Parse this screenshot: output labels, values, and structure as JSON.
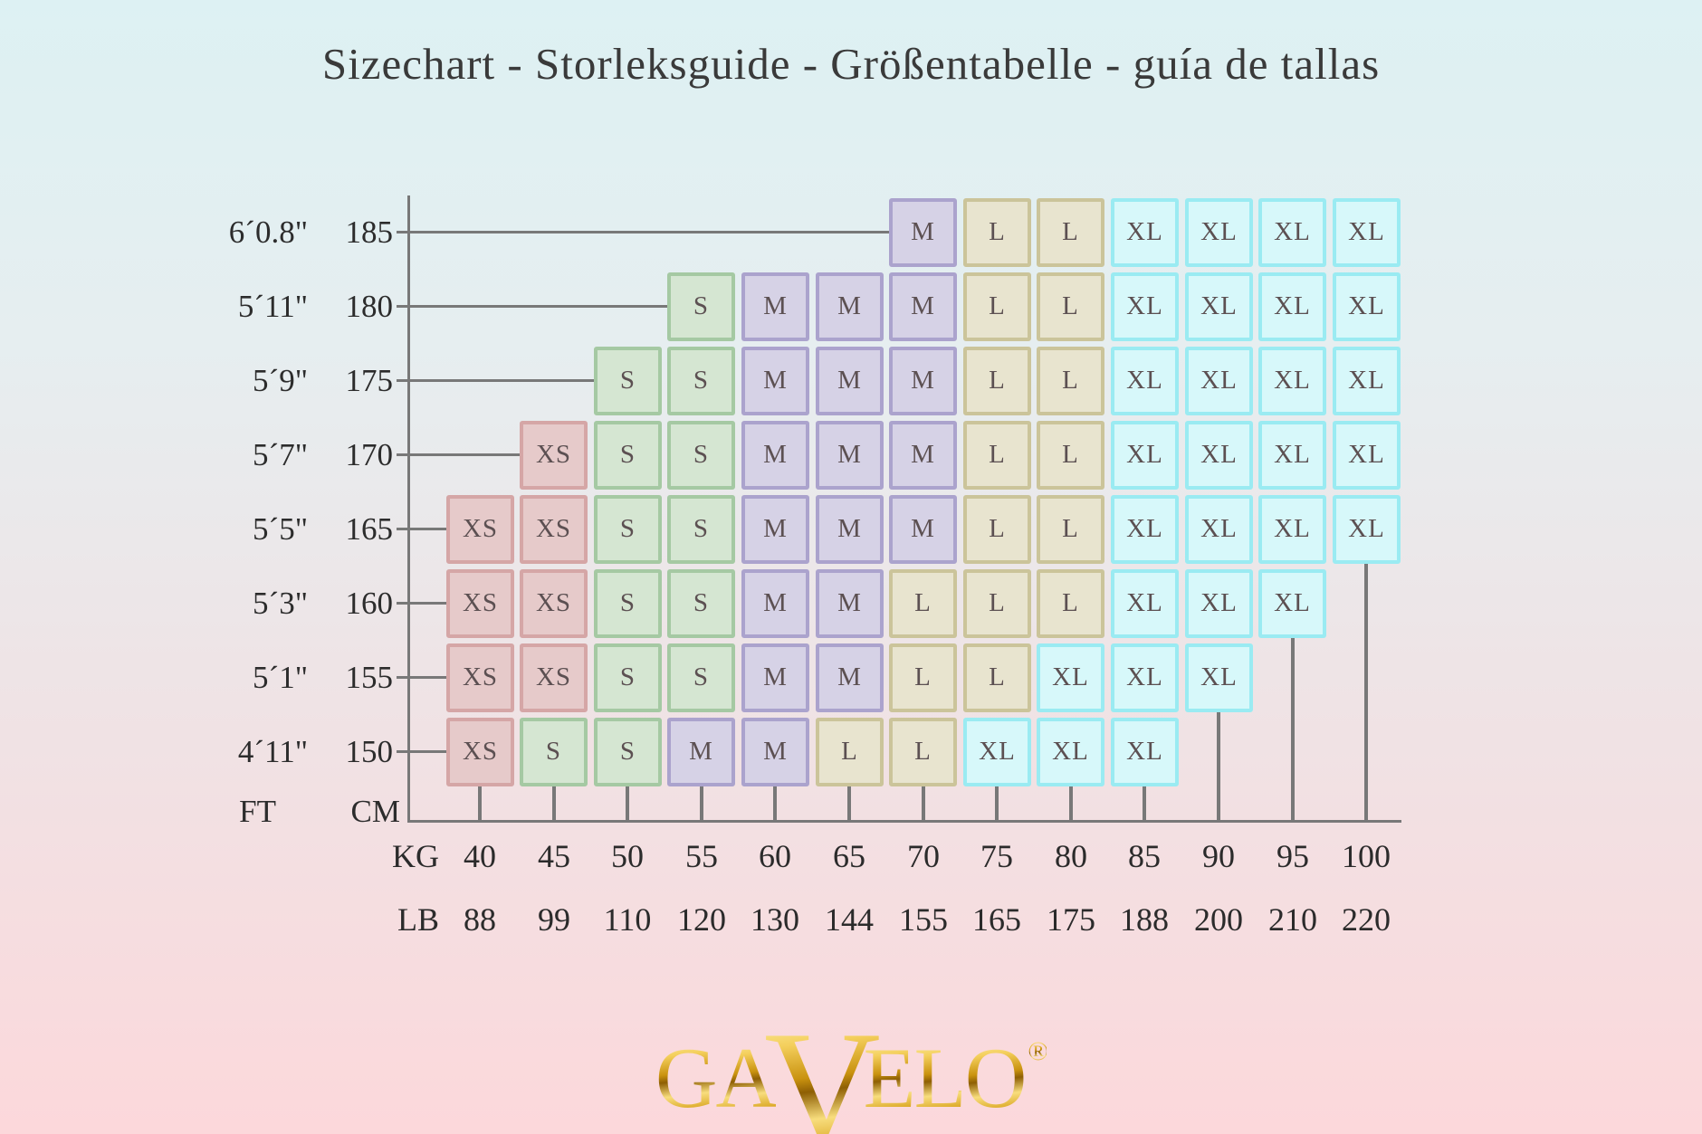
{
  "title": "Sizechart - Storleksguide - Größentabelle - guía de tallas",
  "chart_data": {
    "type": "heatmap",
    "title": "Sizechart - Storleksguide - Größentabelle - guía de tallas",
    "y_axis": {
      "unit_left": "FT",
      "unit_right": "CM"
    },
    "x_axis": {
      "row1_label": "KG",
      "row2_label": "LB",
      "kg": [
        "40",
        "45",
        "50",
        "55",
        "60",
        "65",
        "70",
        "75",
        "80",
        "85",
        "90",
        "95",
        "100"
      ],
      "lb": [
        "88",
        "99",
        "110",
        "120",
        "130",
        "144",
        "155",
        "165",
        "175",
        "188",
        "200",
        "210",
        "220"
      ]
    },
    "sizes": [
      "XS",
      "S",
      "M",
      "L",
      "XL"
    ],
    "rows": [
      {
        "ft": "6´0.8\"",
        "cm": "185",
        "cells": [
          null,
          null,
          null,
          null,
          null,
          null,
          "M",
          "L",
          "L",
          "XL",
          "XL",
          "XL",
          "XL"
        ]
      },
      {
        "ft": "5´11\"",
        "cm": "180",
        "cells": [
          null,
          null,
          null,
          "S",
          "M",
          "M",
          "M",
          "L",
          "L",
          "XL",
          "XL",
          "XL",
          "XL"
        ]
      },
      {
        "ft": "5´9\"",
        "cm": "175",
        "cells": [
          null,
          null,
          "S",
          "S",
          "M",
          "M",
          "M",
          "L",
          "L",
          "XL",
          "XL",
          "XL",
          "XL"
        ]
      },
      {
        "ft": "5´7\"",
        "cm": "170",
        "cells": [
          null,
          "XS",
          "S",
          "S",
          "M",
          "M",
          "M",
          "L",
          "L",
          "XL",
          "XL",
          "XL",
          "XL"
        ]
      },
      {
        "ft": "5´5\"",
        "cm": "165",
        "cells": [
          "XS",
          "XS",
          "S",
          "S",
          "M",
          "M",
          "M",
          "L",
          "L",
          "XL",
          "XL",
          "XL",
          "XL"
        ]
      },
      {
        "ft": "5´3\"",
        "cm": "160",
        "cells": [
          "XS",
          "XS",
          "S",
          "S",
          "M",
          "M",
          "L",
          "L",
          "L",
          "XL",
          "XL",
          "XL",
          null
        ]
      },
      {
        "ft": "5´1\"",
        "cm": "155",
        "cells": [
          "XS",
          "XS",
          "S",
          "S",
          "M",
          "M",
          "L",
          "L",
          "XL",
          "XL",
          "XL",
          null,
          null
        ]
      },
      {
        "ft": "4´11\"",
        "cm": "150",
        "cells": [
          "XS",
          "S",
          "S",
          "M",
          "M",
          "L",
          "L",
          "XL",
          "XL",
          "XL",
          null,
          null,
          null
        ]
      }
    ]
  },
  "size_colors": {
    "XS": {
      "fill": "#e6caca",
      "border": "#d5a6a6"
    },
    "S": {
      "fill": "#d5e6d2",
      "border": "#a5c9a3"
    },
    "M": {
      "fill": "#d6d2e6",
      "border": "#aba3cd"
    },
    "L": {
      "fill": "#e8e4cf",
      "border": "#cbc49a"
    },
    "XL": {
      "fill": "#d7f8fa",
      "border": "#9aebf2"
    }
  },
  "theme": {
    "background_top": "#ddf1f3",
    "background_bottom": "#fcd8db",
    "axis_line_color": "#787878",
    "label_color": "#2b2b2b",
    "cell_text_color": "#5c5052",
    "title_color": "#3a3a3a",
    "logo_gold": "#c9920f"
  },
  "logo": {
    "text": "GAVELO",
    "registered": "®"
  }
}
